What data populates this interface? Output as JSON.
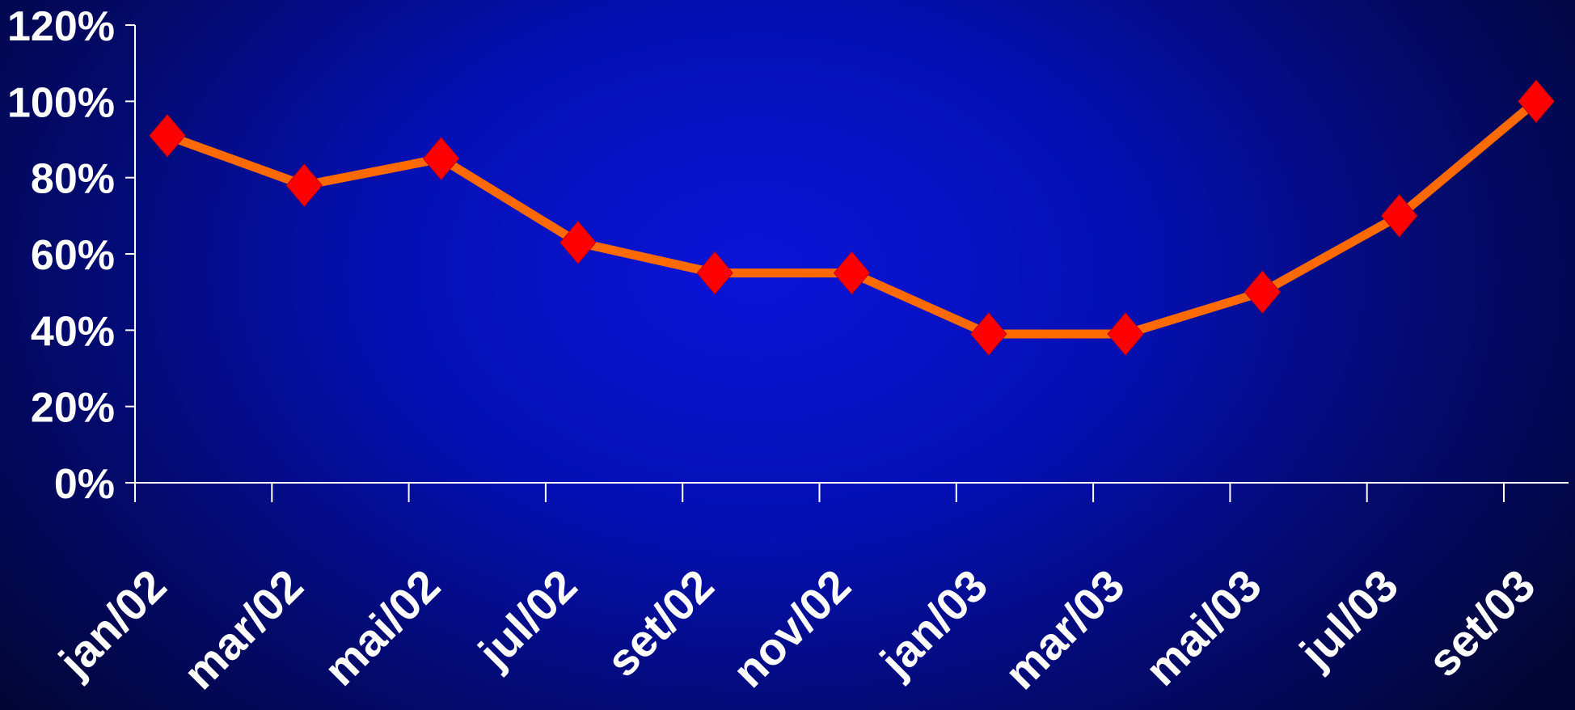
{
  "chart_data": {
    "type": "line",
    "categories": [
      "jan/02",
      "mar/02",
      "mai/02",
      "jul/02",
      "set/02",
      "nov/02",
      "jan/03",
      "mar/03",
      "mai/03",
      "jul/03",
      "set/03"
    ],
    "series": [
      {
        "values": [
          91,
          78,
          85,
          63,
          55,
          55,
          39,
          39,
          50,
          70,
          100
        ]
      }
    ],
    "y_ticks": [
      "0%",
      "20%",
      "40%",
      "60%",
      "80%",
      "100%",
      "120%"
    ],
    "ylim": [
      0,
      120
    ],
    "grid": false,
    "legend": "none",
    "colors": {
      "line": "#ff6a00",
      "marker": "#ff0000",
      "axis": "#ffffff",
      "text": "#ffffff"
    }
  }
}
